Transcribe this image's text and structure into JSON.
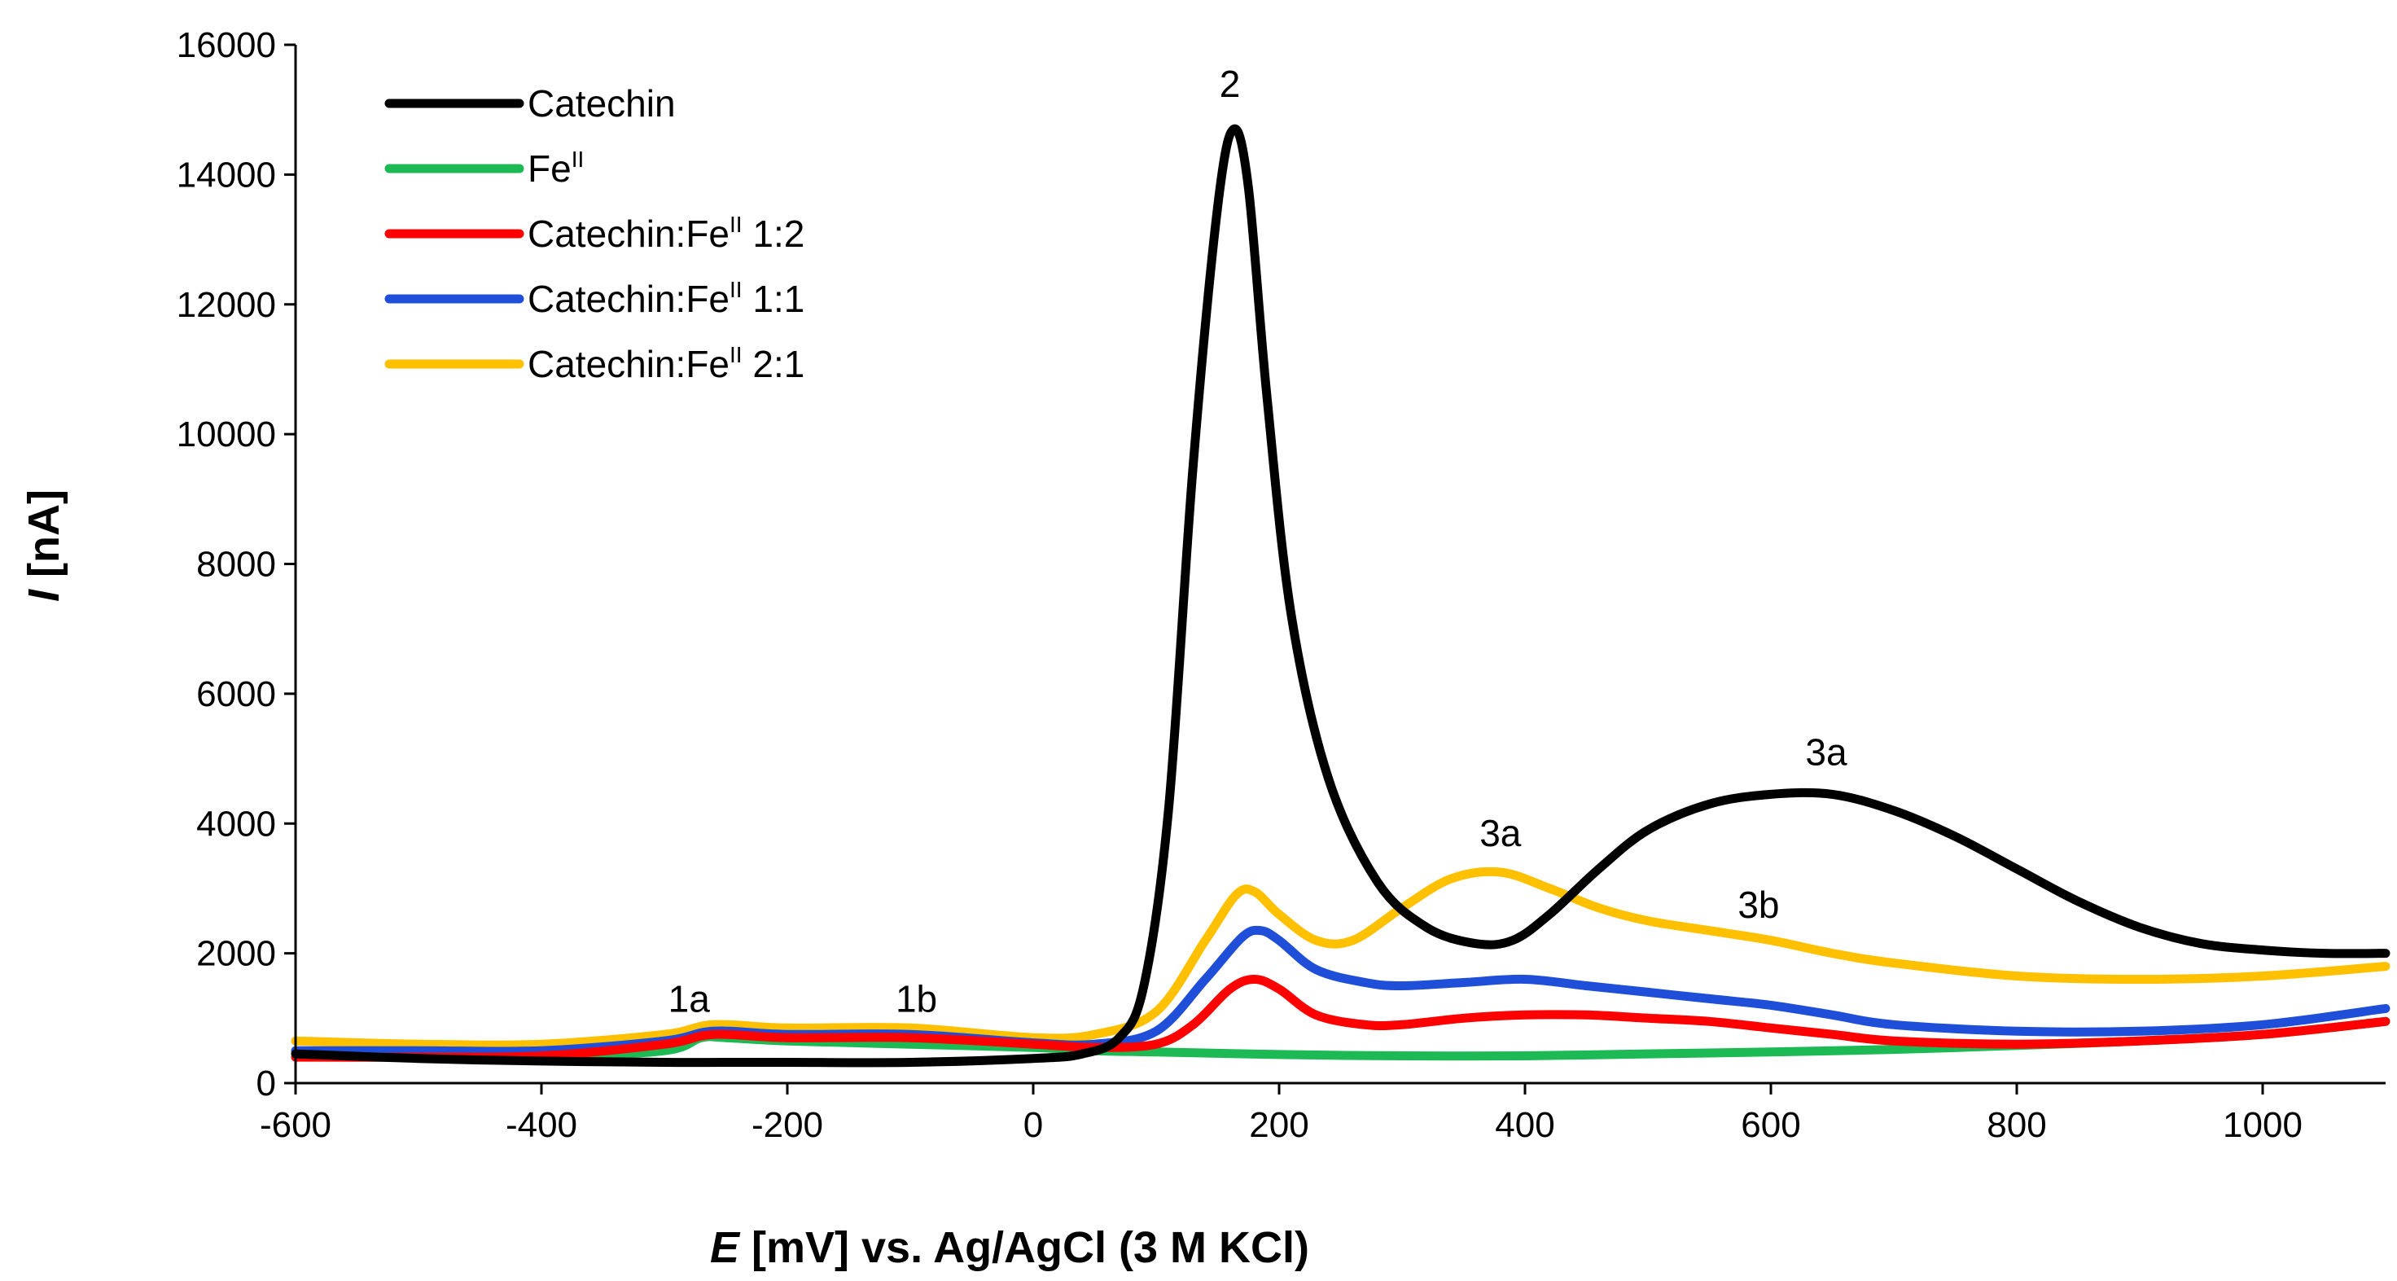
{
  "chart_data": {
    "type": "line",
    "title": "",
    "xlabel": {
      "italic": "E",
      "rest": " [mV] vs. Ag/AgCl (3 M KCl)"
    },
    "ylabel": {
      "italic": "I",
      "rest": " [nA]"
    },
    "xlim": [
      -600,
      1100
    ],
    "ylim": [
      0,
      16000
    ],
    "xticks": [
      -600,
      -400,
      -200,
      0,
      200,
      400,
      600,
      800,
      1000
    ],
    "yticks": [
      0,
      2000,
      4000,
      6000,
      8000,
      10000,
      12000,
      14000,
      16000
    ],
    "grid": false,
    "legend_position": "top-left",
    "series": [
      {
        "name": "Catechin",
        "legend": {
          "base": "Catechin",
          "sup": "",
          "suffix": ""
        },
        "color": "#000000",
        "x": [
          -600,
          -500,
          -400,
          -300,
          -250,
          -200,
          -100,
          0,
          40,
          70,
          90,
          110,
          130,
          150,
          163,
          175,
          190,
          210,
          240,
          280,
          320,
          360,
          390,
          420,
          460,
          500,
          550,
          600,
          650,
          700,
          750,
          800,
          850,
          900,
          950,
          1000,
          1050,
          1100
        ],
        "y": [
          450,
          380,
          340,
          320,
          320,
          320,
          320,
          380,
          450,
          700,
          1500,
          4200,
          9500,
          13500,
          14700,
          13800,
          10600,
          7200,
          4700,
          3100,
          2400,
          2150,
          2200,
          2600,
          3300,
          3900,
          4300,
          4450,
          4450,
          4200,
          3800,
          3300,
          2800,
          2400,
          2150,
          2050,
          2000,
          2000
        ]
      },
      {
        "name": "FeII",
        "legend": {
          "base": "Fe",
          "sup": "II",
          "suffix": ""
        },
        "color": "#1db954",
        "x": [
          -600,
          -500,
          -400,
          -300,
          -270,
          -250,
          -200,
          -100,
          0,
          50,
          100,
          200,
          300,
          400,
          500,
          600,
          700,
          800,
          900,
          1000,
          1100
        ],
        "y": [
          450,
          420,
          400,
          500,
          700,
          700,
          650,
          600,
          550,
          500,
          480,
          440,
          420,
          420,
          450,
          480,
          520,
          580,
          650,
          750,
          950
        ]
      },
      {
        "name": "Catechin:FeII 1:2",
        "legend": {
          "base": "Catechin:Fe",
          "sup": "II",
          "suffix": " 1:2"
        },
        "color": "#ff0000",
        "x": [
          -600,
          -500,
          -400,
          -300,
          -260,
          -200,
          -100,
          0,
          50,
          100,
          130,
          160,
          180,
          200,
          230,
          270,
          300,
          350,
          400,
          450,
          500,
          550,
          600,
          650,
          700,
          800,
          900,
          1000,
          1100
        ],
        "y": [
          400,
          400,
          420,
          600,
          750,
          700,
          700,
          600,
          550,
          600,
          900,
          1450,
          1600,
          1450,
          1050,
          900,
          900,
          1000,
          1050,
          1050,
          1000,
          950,
          850,
          750,
          650,
          600,
          650,
          750,
          950
        ]
      },
      {
        "name": "Catechin:FeII 1:1",
        "legend": {
          "base": "Catechin:Fe",
          "sup": "II",
          "suffix": " 1:1"
        },
        "color": "#1f4fd8",
        "x": [
          -600,
          -500,
          -400,
          -300,
          -260,
          -200,
          -100,
          0,
          50,
          100,
          140,
          170,
          185,
          200,
          230,
          270,
          300,
          350,
          400,
          450,
          500,
          550,
          600,
          650,
          700,
          800,
          900,
          1000,
          1100
        ],
        "y": [
          500,
          500,
          500,
          650,
          800,
          750,
          750,
          620,
          600,
          800,
          1600,
          2250,
          2350,
          2200,
          1750,
          1550,
          1500,
          1550,
          1600,
          1500,
          1400,
          1300,
          1200,
          1050,
          900,
          800,
          800,
          900,
          1150
        ]
      },
      {
        "name": "Catechin:FeII 2:1",
        "legend": {
          "base": "Catechin:Fe",
          "sup": "II",
          "suffix": " 2:1"
        },
        "color": "#ffc000",
        "x": [
          -600,
          -500,
          -400,
          -300,
          -260,
          -200,
          -100,
          0,
          50,
          100,
          140,
          165,
          180,
          200,
          230,
          260,
          300,
          340,
          380,
          420,
          460,
          500,
          550,
          600,
          650,
          700,
          800,
          900,
          1000,
          1100
        ],
        "y": [
          650,
          600,
          600,
          750,
          900,
          850,
          850,
          700,
          750,
          1100,
          2200,
          2900,
          2950,
          2600,
          2200,
          2200,
          2700,
          3150,
          3250,
          3000,
          2700,
          2500,
          2350,
          2200,
          2000,
          1850,
          1650,
          1600,
          1650,
          1800
        ]
      }
    ],
    "annotations": [
      {
        "text": "1a",
        "x": -280,
        "y": 1100
      },
      {
        "text": "1b",
        "x": -95,
        "y": 1100
      },
      {
        "text": "2",
        "x": 160,
        "y": 15200
      },
      {
        "text": "3a",
        "x": 380,
        "y": 3650
      },
      {
        "text": "3a",
        "x": 645,
        "y": 4900
      },
      {
        "text": "3b",
        "x": 590,
        "y": 2550
      }
    ]
  }
}
